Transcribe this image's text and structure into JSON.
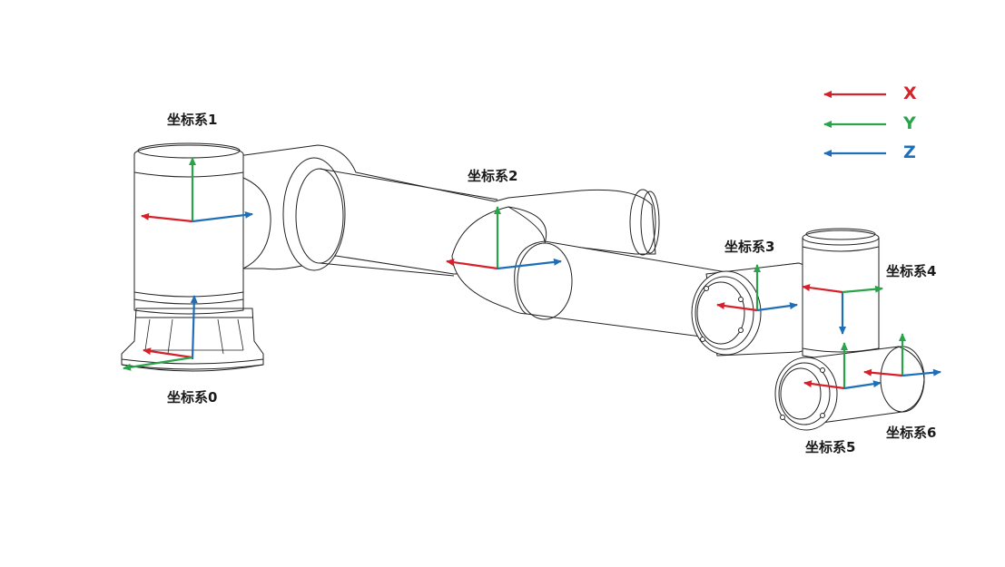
{
  "colors": {
    "x_axis": "#d6202a",
    "y_axis": "#2aa44a",
    "z_axis": "#1f6fb8",
    "outline": "#222222",
    "body_fill": "#ffffff"
  },
  "legend": {
    "x_label": "X",
    "y_label": "Y",
    "z_label": "Z"
  },
  "frames": {
    "frame0": "坐标系0",
    "frame1": "坐标系1",
    "frame2": "坐标系2",
    "frame3": "坐标系3",
    "frame4": "坐标系4",
    "frame5": "坐标系5",
    "frame6": "坐标系6"
  }
}
